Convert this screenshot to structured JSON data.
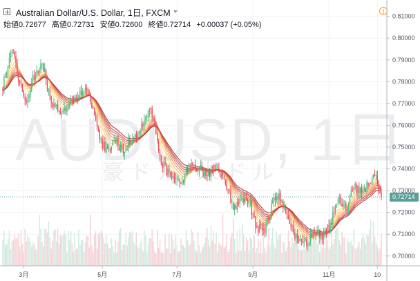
{
  "header": {
    "symbol_title": "Australian Dollar/U.S. Dollar, 1日, FXCM",
    "ohlc": [
      {
        "label": "始値",
        "value": "0.72677"
      },
      {
        "label": "高値",
        "value": "0.72731"
      },
      {
        "label": "安値",
        "value": "0.72600"
      },
      {
        "label": "終値",
        "value": "0.72714"
      }
    ],
    "change": "+0.00037 (+0.05%)"
  },
  "watermark": {
    "symbol": "AUDUSD, 1日",
    "description": "豪ドル/米ドル"
  },
  "icons": {
    "expand": "expand-icon",
    "dropdown": "caret-down-icon",
    "alert": "alert-icon"
  },
  "colors": {
    "up": "#53b987",
    "down": "#eb4d5c",
    "price_line": "#58a199",
    "volume_up": "#d3ebe1",
    "volume_down": "#f3d3d6"
  },
  "last_price_label": "0.72714",
  "chart_data": {
    "type": "candlestick",
    "y_axis": {
      "ylim": [
        0.6955,
        0.8175
      ],
      "ticks": [
        "0.81000",
        "0.80000",
        "0.79000",
        "0.78000",
        "0.77000",
        "0.76000",
        "0.75000",
        "0.74000",
        "0.73000",
        "0.72000",
        "0.71000",
        "0.70000"
      ],
      "tick_values": [
        0.81,
        0.8,
        0.79,
        0.78,
        0.77,
        0.76,
        0.75,
        0.74,
        0.73,
        0.72,
        0.71,
        0.7
      ]
    },
    "x_axis": {
      "labels": [
        "3月",
        "5月",
        "7月",
        "9月",
        "11月",
        "10"
      ],
      "label_bar_index": [
        16,
        76,
        133,
        191,
        249,
        286
      ]
    },
    "bar_count": 290,
    "last_close": 0.72714,
    "close_anchors": [
      [
        0,
        0.778
      ],
      [
        4,
        0.788
      ],
      [
        8,
        0.795
      ],
      [
        11,
        0.784
      ],
      [
        14,
        0.779
      ],
      [
        18,
        0.77
      ],
      [
        22,
        0.78
      ],
      [
        26,
        0.783
      ],
      [
        30,
        0.79
      ],
      [
        36,
        0.772
      ],
      [
        42,
        0.768
      ],
      [
        48,
        0.766
      ],
      [
        54,
        0.772
      ],
      [
        60,
        0.774
      ],
      [
        64,
        0.778
      ],
      [
        70,
        0.765
      ],
      [
        75,
        0.752
      ],
      [
        80,
        0.748
      ],
      [
        86,
        0.753
      ],
      [
        92,
        0.748
      ],
      [
        98,
        0.754
      ],
      [
        104,
        0.757
      ],
      [
        108,
        0.762
      ],
      [
        112,
        0.768
      ],
      [
        116,
        0.76
      ],
      [
        120,
        0.745
      ],
      [
        126,
        0.738
      ],
      [
        132,
        0.733
      ],
      [
        138,
        0.736
      ],
      [
        144,
        0.742
      ],
      [
        150,
        0.74
      ],
      [
        156,
        0.737
      ],
      [
        162,
        0.74
      ],
      [
        168,
        0.736
      ],
      [
        172,
        0.731
      ],
      [
        176,
        0.722
      ],
      [
        182,
        0.726
      ],
      [
        188,
        0.725
      ],
      [
        194,
        0.713
      ],
      [
        200,
        0.712
      ],
      [
        206,
        0.725
      ],
      [
        210,
        0.728
      ],
      [
        214,
        0.723
      ],
      [
        220,
        0.713
      ],
      [
        226,
        0.706
      ],
      [
        232,
        0.706
      ],
      [
        238,
        0.712
      ],
      [
        244,
        0.709
      ],
      [
        250,
        0.714
      ],
      [
        256,
        0.726
      ],
      [
        262,
        0.721
      ],
      [
        268,
        0.732
      ],
      [
        274,
        0.729
      ],
      [
        280,
        0.734
      ],
      [
        284,
        0.738
      ],
      [
        287,
        0.73
      ],
      [
        289,
        0.72714
      ]
    ],
    "ribbon": {
      "type": "moving-average ribbon",
      "colors": [
        "#fde68a",
        "#fcd57a",
        "#f7b267",
        "#f29660",
        "#e87b58",
        "#d9614f",
        "#c44b46",
        "#a8363b"
      ]
    }
  }
}
